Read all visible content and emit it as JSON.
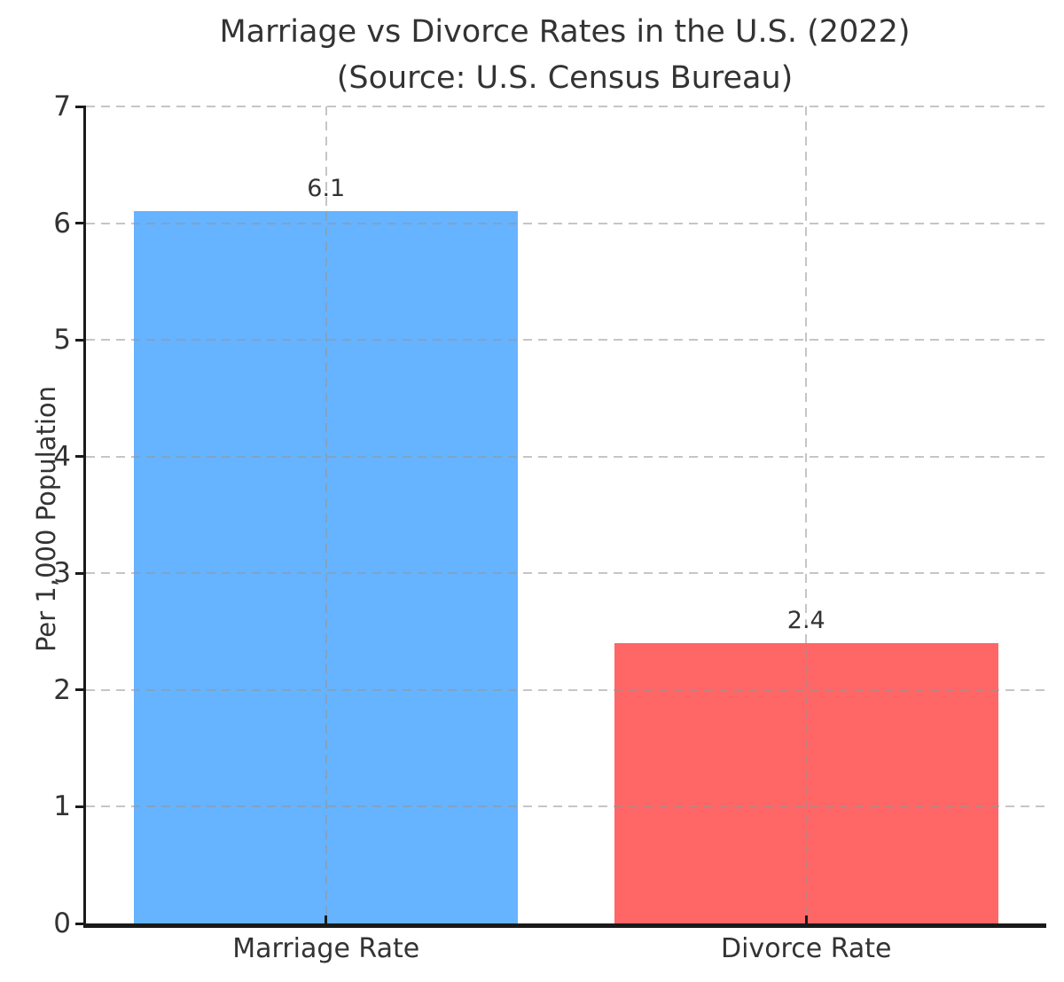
{
  "figure": {
    "title": "Marriage vs Divorce Rates in the U.S. (2022)",
    "subtitle": "(Source: U.S. Census Bureau)"
  },
  "chart_data": {
    "type": "bar",
    "title": "Marriage vs Divorce Rates in the U.S. (2022)",
    "subtitle": "(Source: U.S. Census Bureau)",
    "categories": [
      "Marriage Rate",
      "Divorce Rate"
    ],
    "values": [
      6.1,
      2.4
    ],
    "bar_value_labels": [
      "6.1",
      "2.4"
    ],
    "bar_colors": [
      "#66b3ff",
      "#ff6666"
    ],
    "xlabel": "",
    "ylabel": "Per 1,000 Population",
    "ylim": [
      0,
      7
    ],
    "yticks": [
      0,
      1,
      2,
      3,
      4,
      5,
      6,
      7
    ],
    "bar_width_fraction": 0.8,
    "grid": "dashed",
    "grid_over_bars": true,
    "legend_position": "none"
  },
  "colors": {
    "background": "#ffffff",
    "bar_blue": "#66b3ff",
    "bar_red": "#ff6666",
    "grid": "rgba(150,150,150,0.55)",
    "spine": "#1a1a1a",
    "text": "#333333"
  }
}
